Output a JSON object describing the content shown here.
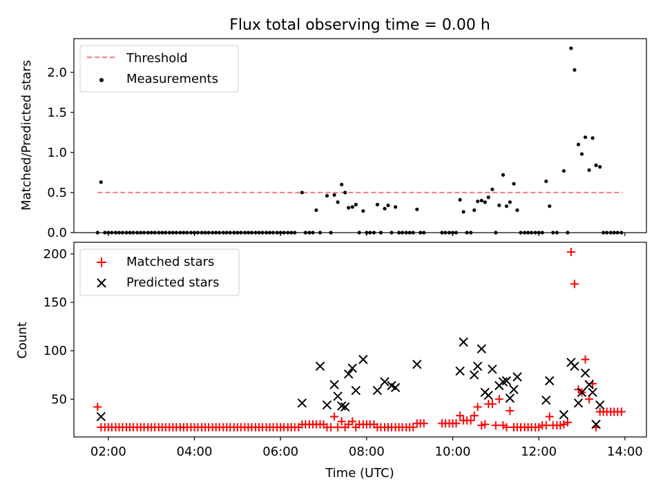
{
  "title": "Flux total observing time = 0.00 h",
  "chart_data": [
    {
      "type": "scatter",
      "ylabel": "Matched/Predicted stars",
      "xlim": [
        1.2,
        14.5
      ],
      "ylim": [
        0,
        2.42
      ],
      "x_ticks": [
        2,
        4,
        6,
        8,
        10,
        12,
        14
      ],
      "y_ticks": [
        0.0,
        0.5,
        1.0,
        1.5,
        2.0
      ],
      "y_tick_labels": [
        "0.0",
        "0.5",
        "1.0",
        "1.5",
        "2.0"
      ],
      "legend_position": "top-left",
      "series": [
        {
          "name": "Threshold",
          "kind": "dashed-line",
          "color": "#ff8080",
          "x": [
            1.75,
            13.95
          ],
          "y": [
            0.5,
            0.5
          ]
        },
        {
          "name": "Measurements",
          "kind": "dots",
          "color": "#000000",
          "x": [
            1.75,
            1.83,
            1.92,
            2.0,
            2.08,
            2.17,
            2.25,
            2.33,
            2.42,
            2.5,
            2.58,
            2.67,
            2.75,
            2.83,
            2.92,
            3.0,
            3.08,
            3.17,
            3.25,
            3.33,
            3.42,
            3.5,
            3.58,
            3.67,
            3.75,
            3.83,
            3.92,
            4.0,
            4.08,
            4.17,
            4.25,
            4.33,
            4.42,
            4.5,
            4.58,
            4.67,
            4.75,
            4.83,
            4.92,
            5.0,
            5.08,
            5.17,
            5.25,
            5.33,
            5.42,
            5.5,
            5.58,
            5.67,
            5.75,
            5.83,
            5.92,
            6.0,
            6.08,
            6.17,
            6.25,
            6.33,
            6.5,
            6.58,
            6.67,
            6.75,
            6.83,
            6.92,
            7.08,
            7.17,
            7.25,
            7.33,
            7.42,
            7.5,
            7.58,
            7.67,
            7.75,
            7.83,
            7.92,
            8.0,
            8.08,
            8.17,
            8.25,
            8.33,
            8.42,
            8.5,
            8.58,
            8.67,
            8.75,
            8.83,
            8.92,
            9.0,
            9.08,
            9.17,
            9.25,
            9.33,
            9.75,
            9.83,
            9.92,
            10.0,
            10.08,
            10.17,
            10.25,
            10.33,
            10.42,
            10.5,
            10.58,
            10.67,
            10.75,
            10.83,
            10.92,
            11.0,
            11.08,
            11.17,
            11.25,
            11.33,
            11.42,
            11.5,
            11.58,
            11.67,
            11.75,
            11.83,
            11.92,
            12.0,
            12.08,
            12.17,
            12.25,
            12.33,
            12.42,
            12.58,
            12.67,
            12.75,
            12.83,
            12.92,
            13.0,
            13.08,
            13.17,
            13.25,
            13.33,
            13.42,
            13.5,
            13.58,
            13.67,
            13.75,
            13.83,
            13.92
          ],
          "y": [
            0.0,
            0.63,
            0.0,
            0.0,
            0.0,
            0.0,
            0.0,
            0.0,
            0.0,
            0.0,
            0.0,
            0.0,
            0.0,
            0.0,
            0.0,
            0.0,
            0.0,
            0.0,
            0.0,
            0.0,
            0.0,
            0.0,
            0.0,
            0.0,
            0.0,
            0.0,
            0.0,
            0.0,
            0.0,
            0.0,
            0.0,
            0.0,
            0.0,
            0.0,
            0.0,
            0.0,
            0.0,
            0.0,
            0.0,
            0.0,
            0.0,
            0.0,
            0.0,
            0.0,
            0.0,
            0.0,
            0.0,
            0.0,
            0.0,
            0.0,
            0.0,
            0.0,
            0.0,
            0.0,
            0.0,
            0.0,
            0.5,
            0.0,
            0.0,
            0.0,
            0.28,
            0.0,
            0.46,
            0.0,
            0.47,
            0.38,
            0.6,
            0.5,
            0.31,
            0.32,
            0.35,
            0.0,
            0.27,
            0.0,
            0.0,
            0.0,
            0.35,
            0.0,
            0.3,
            0.34,
            0.0,
            0.32,
            0.0,
            0.0,
            0.0,
            0.0,
            0.0,
            0.29,
            0.0,
            0.0,
            0.0,
            0.0,
            0.0,
            0.0,
            0.0,
            0.41,
            0.26,
            0.0,
            0.0,
            0.28,
            0.39,
            0.4,
            0.38,
            0.44,
            0.54,
            0.0,
            0.34,
            0.72,
            0.33,
            0.38,
            0.61,
            0.28,
            0.0,
            0.0,
            0.0,
            0.0,
            0.0,
            0.0,
            0.0,
            0.64,
            0.33,
            0.0,
            0.0,
            0.77,
            0.0,
            2.3,
            2.03,
            1.1,
            0.98,
            1.19,
            0.78,
            1.18,
            0.84,
            0.82,
            0.0,
            0.0,
            0.0,
            0.0,
            0.0,
            0.0
          ]
        }
      ]
    },
    {
      "type": "scatter",
      "xlabel": "Time (UTC)",
      "ylabel": "Count",
      "xlim": [
        1.2,
        14.5
      ],
      "ylim": [
        11,
        212
      ],
      "x_ticks": [
        2,
        4,
        6,
        8,
        10,
        12,
        14
      ],
      "x_tick_labels": [
        "02:00",
        "04:00",
        "06:00",
        "08:00",
        "10:00",
        "12:00",
        "14:00"
      ],
      "y_ticks": [
        50,
        100,
        150,
        200
      ],
      "y_tick_labels": [
        "50",
        "100",
        "150",
        "200"
      ],
      "legend_position": "top-left",
      "series": [
        {
          "name": "Matched stars",
          "marker": "plus",
          "color": "#ff0000",
          "x": [
            1.75,
            1.83,
            1.92,
            2.0,
            2.08,
            2.17,
            2.25,
            2.33,
            2.42,
            2.5,
            2.58,
            2.67,
            2.75,
            2.83,
            2.92,
            3.0,
            3.08,
            3.17,
            3.25,
            3.33,
            3.42,
            3.5,
            3.58,
            3.67,
            3.75,
            3.83,
            3.92,
            4.0,
            4.08,
            4.17,
            4.25,
            4.33,
            4.42,
            4.5,
            4.58,
            4.67,
            4.75,
            4.83,
            4.92,
            5.0,
            5.08,
            5.17,
            5.25,
            5.33,
            5.42,
            5.5,
            5.58,
            5.67,
            5.75,
            5.83,
            5.92,
            6.0,
            6.08,
            6.17,
            6.25,
            6.33,
            6.42,
            6.5,
            6.58,
            6.67,
            6.75,
            6.83,
            6.92,
            7.0,
            7.08,
            7.17,
            7.25,
            7.33,
            7.42,
            7.5,
            7.58,
            7.67,
            7.75,
            7.83,
            7.92,
            8.0,
            8.08,
            8.17,
            8.25,
            8.33,
            8.42,
            8.5,
            8.58,
            8.67,
            8.75,
            8.83,
            8.92,
            9.0,
            9.08,
            9.17,
            9.25,
            9.33,
            9.75,
            9.83,
            9.92,
            10.0,
            10.08,
            10.17,
            10.25,
            10.33,
            10.42,
            10.5,
            10.58,
            10.67,
            10.75,
            10.83,
            10.92,
            11.0,
            11.08,
            11.17,
            11.25,
            11.33,
            11.42,
            11.5,
            11.58,
            11.67,
            11.75,
            11.83,
            11.92,
            12.0,
            12.08,
            12.17,
            12.25,
            12.33,
            12.42,
            12.5,
            12.58,
            12.67,
            12.75,
            12.83,
            12.92,
            13.0,
            13.08,
            13.17,
            13.25,
            13.33,
            13.42,
            13.5,
            13.58,
            13.67,
            13.75,
            13.83,
            13.92
          ],
          "y": [
            42,
            21,
            21,
            21,
            21,
            21,
            21,
            21,
            21,
            21,
            21,
            21,
            21,
            21,
            21,
            21,
            21,
            21,
            21,
            21,
            21,
            21,
            21,
            21,
            21,
            21,
            21,
            21,
            21,
            21,
            21,
            21,
            21,
            21,
            21,
            21,
            21,
            21,
            21,
            21,
            21,
            21,
            21,
            21,
            21,
            21,
            21,
            21,
            21,
            21,
            21,
            21,
            21,
            21,
            21,
            21,
            21,
            24,
            24,
            24,
            24,
            24,
            24,
            24,
            21,
            21,
            32,
            21,
            27,
            21,
            24,
            27,
            21,
            24,
            24,
            24,
            24,
            24,
            21,
            21,
            21,
            21,
            21,
            21,
            21,
            21,
            21,
            21,
            21,
            25,
            25,
            25,
            25,
            25,
            25,
            25,
            25,
            33,
            28,
            28,
            28,
            33,
            42,
            23,
            24,
            45,
            45,
            23,
            50,
            23,
            21,
            38,
            21,
            21,
            21,
            21,
            21,
            21,
            21,
            21,
            23,
            23,
            32,
            23,
            23,
            23,
            24,
            26,
            202,
            169,
            60,
            57,
            91,
            50,
            66,
            21,
            37,
            37,
            37,
            37,
            37,
            37,
            37
          ]
        },
        {
          "name": "Predicted stars",
          "marker": "x",
          "color": "#000000",
          "x": [
            1.83,
            6.5,
            6.92,
            7.08,
            7.25,
            7.33,
            7.42,
            7.5,
            7.58,
            7.67,
            7.75,
            7.92,
            8.25,
            8.42,
            8.58,
            8.67,
            9.17,
            10.17,
            10.25,
            10.5,
            10.58,
            10.67,
            10.75,
            10.83,
            10.92,
            11.08,
            11.17,
            11.25,
            11.33,
            11.42,
            11.5,
            12.17,
            12.25,
            12.58,
            12.75,
            12.83,
            12.92,
            13.0,
            13.08,
            13.17,
            13.25,
            13.33,
            13.42
          ],
          "y": [
            32,
            46,
            84,
            44,
            65,
            53,
            43,
            42,
            76,
            82,
            59,
            91,
            59,
            68,
            64,
            62,
            86,
            79,
            109,
            75,
            84,
            102,
            57,
            54,
            81,
            64,
            68,
            69,
            51,
            60,
            73,
            49,
            69,
            34,
            88,
            84,
            46,
            57,
            77,
            65,
            57,
            24,
            44
          ]
        }
      ]
    }
  ]
}
